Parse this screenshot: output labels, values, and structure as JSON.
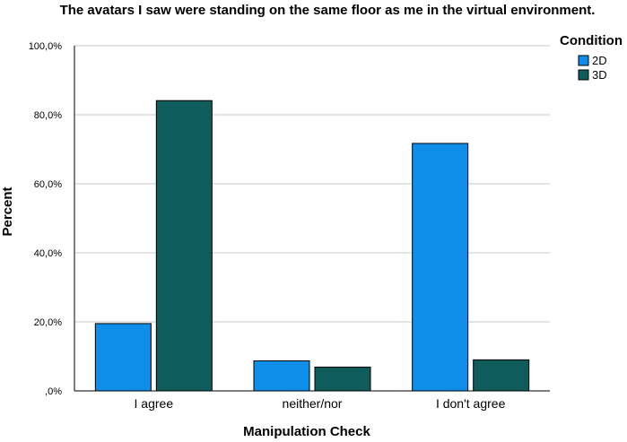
{
  "chart_data": {
    "type": "bar",
    "title": "The avatars I saw were standing on the same floor as me in the virtual environment.",
    "xlabel": "Manipulation Check",
    "ylabel": "Percent",
    "categories": [
      "I agree",
      "neither/nor",
      "I don't agree"
    ],
    "series": [
      {
        "name": "2D",
        "values": [
          19.5,
          8.7,
          71.7
        ],
        "color": "#0f8ee9"
      },
      {
        "name": "3D",
        "values": [
          84.1,
          6.9,
          9.0
        ],
        "color": "#0f5c5c"
      }
    ],
    "ylim": [
      0,
      100
    ],
    "yticks": [
      0,
      20,
      40,
      60,
      80,
      100
    ],
    "ytick_labels": [
      ",0%",
      "20,0%",
      "40,0%",
      "60,0%",
      "80,0%",
      "100,0%"
    ],
    "grid": true,
    "legend": {
      "title": "Condition",
      "placement": "top-right"
    }
  }
}
